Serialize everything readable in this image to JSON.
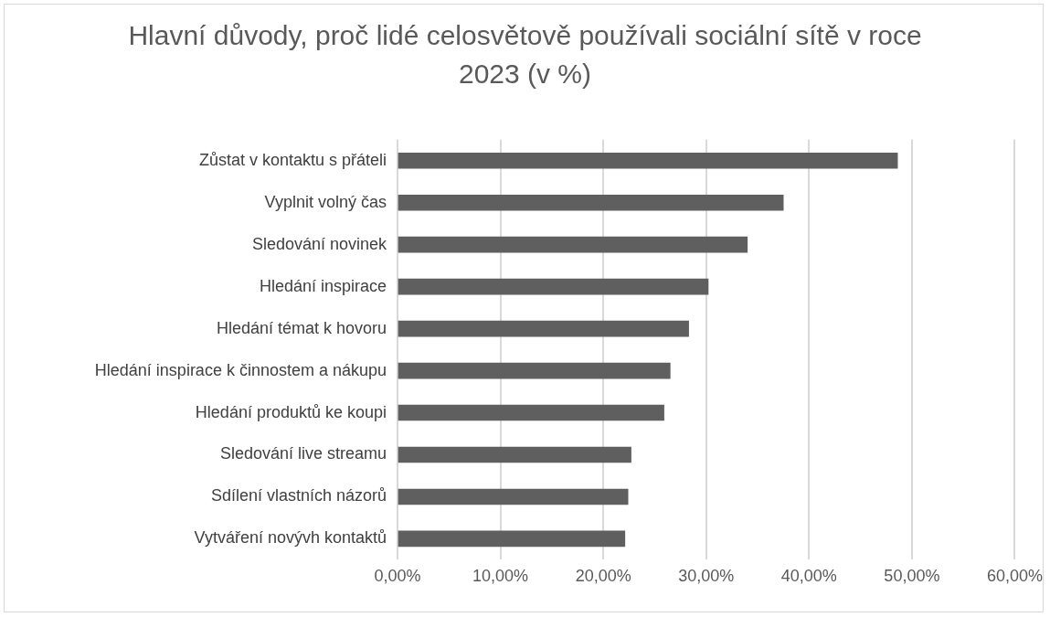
{
  "chart_data": {
    "type": "bar",
    "orientation": "horizontal",
    "title": "Hlavní důvody, proč lidé celosvětově používali sociální sítě v roce 2023 (v %)",
    "categories": [
      "Zůstat v kontaktu s přáteli",
      "Vyplnit volný čas",
      "Sledování novinek",
      "Hledání inspirace",
      "Hledání témat k hovoru",
      "Hledání inspirace k činnostem a nákupu",
      "Hledání produktů ke koupi",
      "Sledování live streamu",
      "Sdílení vlastních názorů",
      "Vytváření novývh kontaktů"
    ],
    "values": [
      48.6,
      37.5,
      34.0,
      30.2,
      28.3,
      26.5,
      25.9,
      22.7,
      22.4,
      22.1
    ],
    "color": "#5f5f5f",
    "xlim": [
      0,
      60
    ],
    "xticks": [
      {
        "value": 0,
        "label": "0,00%"
      },
      {
        "value": 10,
        "label": "10,00%"
      },
      {
        "value": 20,
        "label": "20,00%"
      },
      {
        "value": 30,
        "label": "30,00%"
      },
      {
        "value": 40,
        "label": "40,00%"
      },
      {
        "value": 50,
        "label": "50,00%"
      },
      {
        "value": 60,
        "label": "60,00%"
      }
    ],
    "grid": "x",
    "legend": false
  }
}
